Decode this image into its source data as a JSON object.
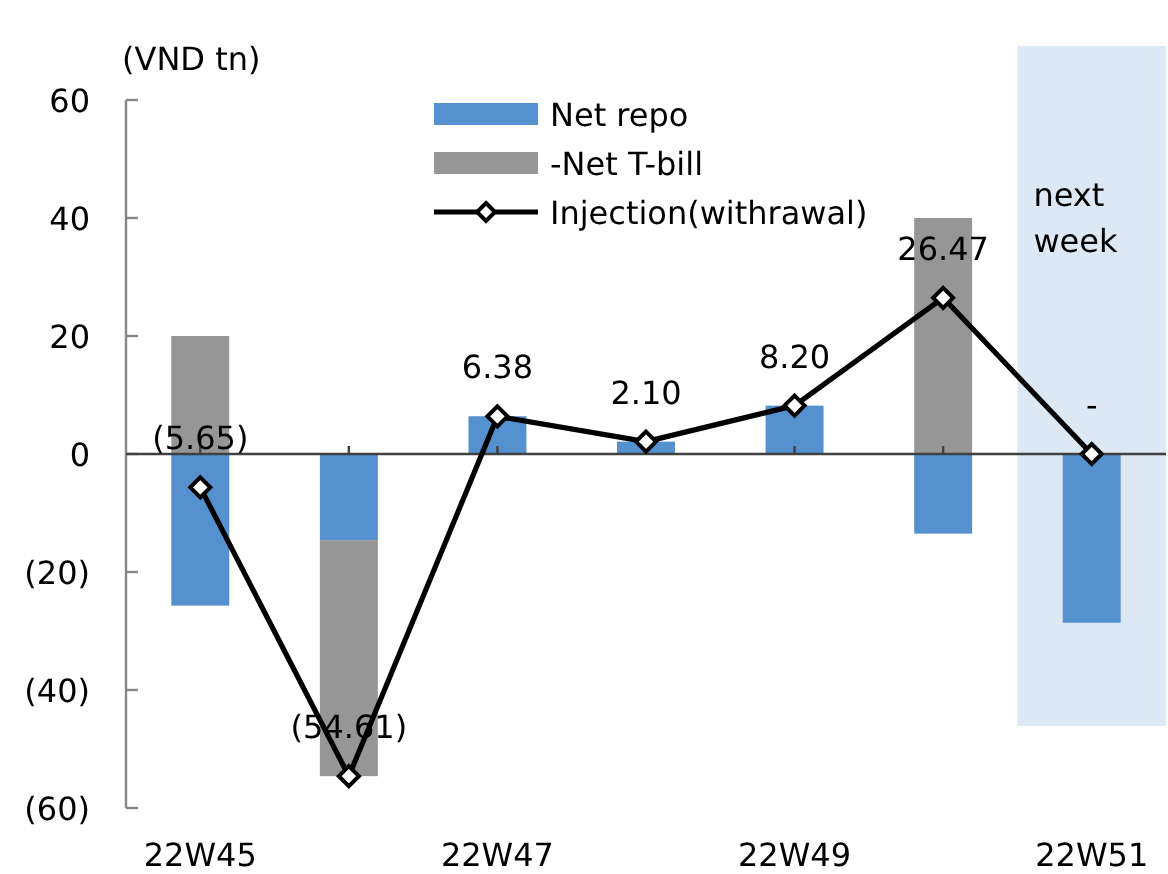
{
  "chart_data": {
    "type": "bar",
    "ylabel": "(VND tn)",
    "categories": [
      "22W45",
      null,
      "22W47",
      null,
      "22W49",
      null,
      "22W51"
    ],
    "stacked": true,
    "ylim": [
      -60,
      60
    ],
    "yticks": [
      {
        "value": -60,
        "label": "(60)"
      },
      {
        "value": -40,
        "label": "(40)"
      },
      {
        "value": -20,
        "label": "(20)"
      },
      0,
      20,
      40,
      60
    ],
    "legend": "top",
    "series": [
      {
        "name": "Net repo",
        "color": "#5591cf",
        "values": [
          -25.7,
          -14.6,
          6.4,
          2.1,
          8.2,
          -13.5,
          -28.6
        ]
      },
      {
        "name": "-Net T-bill",
        "color": "#969696",
        "values": [
          20.0,
          -40.0,
          null,
          null,
          null,
          40.0,
          null
        ]
      },
      {
        "name": "Injection(withrawal)",
        "type": "line",
        "color": "#000000",
        "marker": "diamond",
        "values": [
          -5.65,
          -54.61,
          6.38,
          2.1,
          8.2,
          26.47,
          0
        ],
        "value_labels": [
          "(5.65)",
          "(54.61)",
          "6.38",
          "2.10",
          "8.20",
          "26.47",
          "-"
        ]
      }
    ],
    "bands": [
      {
        "axis": "x",
        "from": "22W51",
        "to": "22W51",
        "label": "next week",
        "color": "#dde8f5"
      }
    ]
  }
}
